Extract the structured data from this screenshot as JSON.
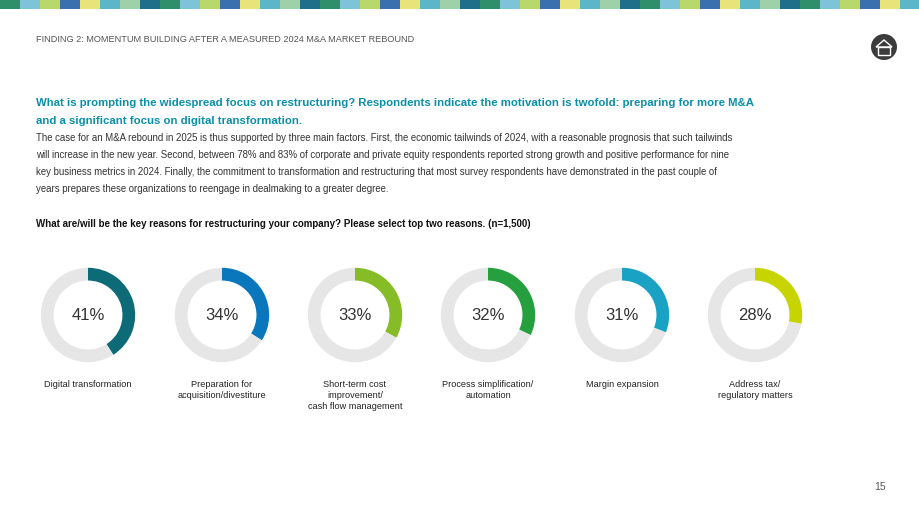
{
  "header": {
    "section": "FINDING 2: MOMENTUM BUILDING AFTER A MEASURED 2024 M&A MARKET REBOUND",
    "page": "15"
  },
  "heading": [
    "What is prompting the widespread focus on restructuring? Respondents indicate the motivation is twofold: preparing for more M&A",
    "and a significant focus on digital transformation."
  ],
  "body": [
    "The case for an M&A rebound in 2025 is thus supported by three main factors. First, the economic tailwinds of 2024, with a reasonable prognosis that such tailwinds",
    "will increase in the new year. Second, between 78% and 83% of corporate and private equity respondents reported strong growth and positive performance for nine",
    "key business metrics in 2024. Finally, the commitment to transformation and restructuring that most survey respondents have demonstrated in the past couple of",
    "years prepares these organizations to reengage in dealmaking to a greater degree."
  ],
  "question": "What are/will be the key reasons for restructuring your company? Please select top two reasons. (n=1,500)",
  "chart_data": {
    "type": "donut",
    "max": 100,
    "items": [
      {
        "label": [
          "Digital transformation"
        ],
        "value": 41,
        "value_label": "41%",
        "color": "#0d6b78"
      },
      {
        "label": [
          "Preparation for",
          "acquisition/divestiture"
        ],
        "value": 34,
        "value_label": "34%",
        "color": "#0a77bd"
      },
      {
        "label": [
          "Short-term cost",
          "improvement/",
          "cash flow management"
        ],
        "value": 33,
        "value_label": "33%",
        "color": "#86bc25"
      },
      {
        "label": [
          "Process simplification/",
          "automation"
        ],
        "value": 32,
        "value_label": "32%",
        "color": "#26a03f"
      },
      {
        "label": [
          "Margin expansion"
        ],
        "value": 31,
        "value_label": "31%",
        "color": "#1aa2c4"
      },
      {
        "label": [
          "Address tax/",
          "regulatory matters"
        ],
        "value": 28,
        "value_label": "28%",
        "color": "#c8d400"
      }
    ]
  }
}
